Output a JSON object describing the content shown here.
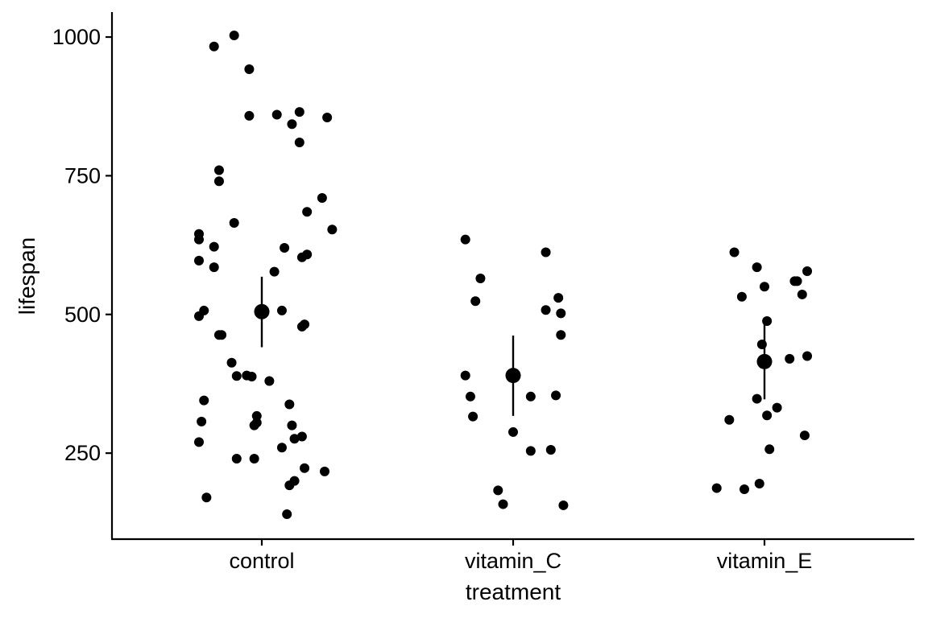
{
  "chart_data": {
    "type": "scatter",
    "title": "",
    "xlabel": "treatment",
    "ylabel": "lifespan",
    "categories": [
      "control",
      "vitamin_C",
      "vitamin_E"
    ],
    "ylim": [
      95,
      1045
    ],
    "yticks": [
      250,
      500,
      750,
      1000
    ],
    "grid": false,
    "legend": "none",
    "points": {
      "control": [
        {
          "offset": -0.25,
          "y": 270
        },
        {
          "offset": -0.22,
          "y": 170
        },
        {
          "offset": -0.23,
          "y": 345
        },
        {
          "offset": -0.24,
          "y": 307
        },
        {
          "offset": -0.25,
          "y": 497
        },
        {
          "offset": -0.23,
          "y": 507
        },
        {
          "offset": -0.25,
          "y": 597
        },
        {
          "offset": -0.25,
          "y": 635
        },
        {
          "offset": -0.25,
          "y": 645
        },
        {
          "offset": -0.19,
          "y": 622
        },
        {
          "offset": -0.19,
          "y": 585
        },
        {
          "offset": -0.17,
          "y": 463
        },
        {
          "offset": -0.16,
          "y": 463
        },
        {
          "offset": -0.12,
          "y": 413
        },
        {
          "offset": -0.1,
          "y": 389
        },
        {
          "offset": -0.1,
          "y": 240
        },
        {
          "offset": -0.17,
          "y": 740
        },
        {
          "offset": -0.17,
          "y": 760
        },
        {
          "offset": -0.11,
          "y": 665
        },
        {
          "offset": -0.19,
          "y": 983
        },
        {
          "offset": -0.11,
          "y": 1003
        },
        {
          "offset": -0.05,
          "y": 942
        },
        {
          "offset": -0.05,
          "y": 858
        },
        {
          "offset": 0.06,
          "y": 860
        },
        {
          "offset": 0.12,
          "y": 843
        },
        {
          "offset": 0.15,
          "y": 865
        },
        {
          "offset": 0.15,
          "y": 810
        },
        {
          "offset": 0.26,
          "y": 855
        },
        {
          "offset": 0.24,
          "y": 710
        },
        {
          "offset": 0.18,
          "y": 685
        },
        {
          "offset": 0.28,
          "y": 653
        },
        {
          "offset": 0.09,
          "y": 620
        },
        {
          "offset": 0.18,
          "y": 608
        },
        {
          "offset": 0.16,
          "y": 603
        },
        {
          "offset": 0.05,
          "y": 577
        },
        {
          "offset": 0.08,
          "y": 507
        },
        {
          "offset": 0.16,
          "y": 478
        },
        {
          "offset": 0.17,
          "y": 482
        },
        {
          "offset": -0.06,
          "y": 390
        },
        {
          "offset": -0.04,
          "y": 388
        },
        {
          "offset": 0.03,
          "y": 380
        },
        {
          "offset": 0.11,
          "y": 338
        },
        {
          "offset": -0.02,
          "y": 317
        },
        {
          "offset": -0.02,
          "y": 305
        },
        {
          "offset": -0.03,
          "y": 300
        },
        {
          "offset": 0.12,
          "y": 300
        },
        {
          "offset": 0.16,
          "y": 280
        },
        {
          "offset": 0.13,
          "y": 276
        },
        {
          "offset": 0.08,
          "y": 260
        },
        {
          "offset": -0.03,
          "y": 240
        },
        {
          "offset": 0.17,
          "y": 223
        },
        {
          "offset": 0.25,
          "y": 217
        },
        {
          "offset": 0.13,
          "y": 200
        },
        {
          "offset": 0.11,
          "y": 192
        },
        {
          "offset": 0.1,
          "y": 140
        }
      ],
      "vitamin_C": [
        {
          "offset": -0.19,
          "y": 635
        },
        {
          "offset": -0.13,
          "y": 565
        },
        {
          "offset": -0.15,
          "y": 524
        },
        {
          "offset": -0.19,
          "y": 390
        },
        {
          "offset": -0.17,
          "y": 352
        },
        {
          "offset": -0.16,
          "y": 316
        },
        {
          "offset": -0.06,
          "y": 183
        },
        {
          "offset": -0.04,
          "y": 158
        },
        {
          "offset": 0.0,
          "y": 288
        },
        {
          "offset": 0.07,
          "y": 352
        },
        {
          "offset": 0.07,
          "y": 254
        },
        {
          "offset": 0.13,
          "y": 612
        },
        {
          "offset": 0.18,
          "y": 530
        },
        {
          "offset": 0.13,
          "y": 508
        },
        {
          "offset": 0.19,
          "y": 502
        },
        {
          "offset": 0.19,
          "y": 463
        },
        {
          "offset": 0.17,
          "y": 354
        },
        {
          "offset": 0.15,
          "y": 256
        },
        {
          "offset": 0.2,
          "y": 156
        }
      ],
      "vitamin_E": [
        {
          "offset": -0.12,
          "y": 612
        },
        {
          "offset": -0.14,
          "y": 310
        },
        {
          "offset": -0.19,
          "y": 187
        },
        {
          "offset": -0.08,
          "y": 185
        },
        {
          "offset": -0.09,
          "y": 532
        },
        {
          "offset": -0.03,
          "y": 585
        },
        {
          "offset": 0.0,
          "y": 550
        },
        {
          "offset": -0.03,
          "y": 348
        },
        {
          "offset": -0.02,
          "y": 195
        },
        {
          "offset": 0.01,
          "y": 488
        },
        {
          "offset": -0.01,
          "y": 446
        },
        {
          "offset": 0.01,
          "y": 318
        },
        {
          "offset": 0.02,
          "y": 257
        },
        {
          "offset": 0.05,
          "y": 332
        },
        {
          "offset": 0.12,
          "y": 560
        },
        {
          "offset": 0.13,
          "y": 560
        },
        {
          "offset": 0.17,
          "y": 578
        },
        {
          "offset": 0.15,
          "y": 536
        },
        {
          "offset": 0.17,
          "y": 425
        },
        {
          "offset": 0.1,
          "y": 420
        },
        {
          "offset": 0.16,
          "y": 282
        }
      ]
    },
    "summary": [
      {
        "category": "control",
        "mean": 505,
        "low": 441,
        "high": 568
      },
      {
        "category": "vitamin_C",
        "mean": 390,
        "low": 317,
        "high": 462
      },
      {
        "category": "vitamin_E",
        "mean": 415,
        "low": 347,
        "high": 485
      }
    ],
    "colors": {
      "points": "#000000",
      "axis": "#000000",
      "background": "#ffffff"
    }
  }
}
